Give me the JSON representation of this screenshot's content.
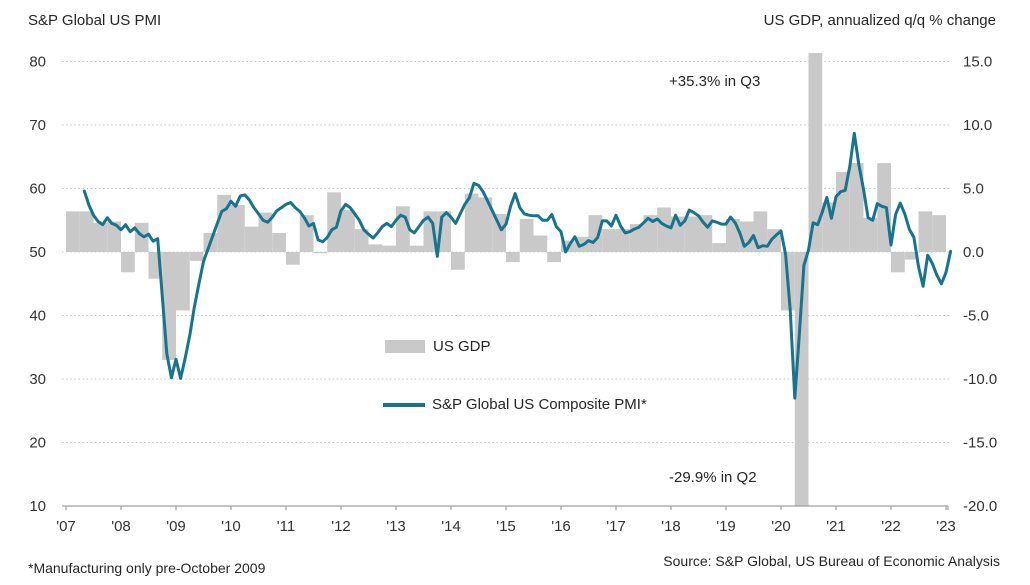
{
  "header": {
    "left_title": "S&P Global US PMI",
    "right_title": "US GDP, annualized q/q % change"
  },
  "annotations": [
    {
      "text": "+35.3% in Q3"
    },
    {
      "text": "-29.9% in Q2"
    }
  ],
  "legend": [
    {
      "label": "US GDP",
      "type": "bar"
    },
    {
      "label": "S&P Global US Composite PMI*",
      "type": "line"
    }
  ],
  "footer": {
    "footnote": "*Manufacturing only pre-October 2009",
    "source": "Source: S&P Global,  US Bureau of Economic Analysis"
  },
  "colors": {
    "bar": "#c9c9c9",
    "line": "#16748f",
    "grid": "#c6c6c6",
    "axis": "#a0a0a0",
    "text": "#333333",
    "background": "#ffffff"
  },
  "chart_data": {
    "type": "line+bar combo",
    "title": "",
    "grid": "horizontal dotted",
    "legend_position": "inside-center",
    "left_axis": {
      "label": "S&P Global US PMI",
      "range": [
        10,
        80
      ],
      "ticks": [
        80,
        70,
        60,
        50,
        40,
        30,
        20,
        10
      ]
    },
    "right_axis": {
      "label": "US GDP, annualized q/q % change",
      "range": [
        -20,
        15
      ],
      "tick_labels": [
        "15.0",
        "10.0",
        "5.0",
        "0.0",
        "-5.0",
        "-10.0",
        "-15.0",
        "-20.0"
      ]
    },
    "x_axis": {
      "tick_labels": [
        "'07",
        "'08",
        "'09",
        "'10",
        "'11",
        "'12",
        "'13",
        "'14",
        "'15",
        "'16",
        "'17",
        "'18",
        "'19",
        "'20",
        "'21",
        "'22",
        "'23"
      ],
      "start_year": 2007
    },
    "series": [
      {
        "name": "US GDP",
        "type": "bar",
        "axis": "right",
        "frequency": "quarterly",
        "start": "2007-Q1",
        "end": "2022-Q4",
        "note": "values above +15 and below -20 are clipped by the plot area (2020 Q3 +35.3, 2020 Q2 -29.9)",
        "values": [
          3.2,
          3.2,
          2.3,
          2.4,
          -1.6,
          2.3,
          -2.1,
          -8.5,
          -4.6,
          -0.7,
          1.5,
          4.5,
          3.7,
          2.0,
          3.1,
          1.5,
          -1.0,
          2.9,
          -0.1,
          4.7,
          3.3,
          1.8,
          0.6,
          0.5,
          3.6,
          0.5,
          3.2,
          3.2,
          -1.4,
          4.6,
          4.3,
          3.0,
          -0.8,
          2.6,
          1.3,
          -0.8,
          0.9,
          1.2,
          2.9,
          1.8,
          1.8,
          2.2,
          2.9,
          3.5,
          2.8,
          2.8,
          2.9,
          0.7,
          2.6,
          2.4,
          3.2,
          1.8,
          -4.6,
          -29.9,
          35.3,
          3.9,
          6.3,
          7.0,
          2.7,
          7.0,
          -1.6,
          -0.6,
          3.2,
          2.9
        ]
      },
      {
        "name": "S&P Global US Composite PMI*",
        "type": "line",
        "axis": "left",
        "frequency": "monthly",
        "start": "2007-05",
        "end": "2023-02",
        "values": [
          59.6,
          57.4,
          55.8,
          54.8,
          54.3,
          55.4,
          54.5,
          54.2,
          53.5,
          54.3,
          53.2,
          53.8,
          52.9,
          52.4,
          52.8,
          51.7,
          52.1,
          43.0,
          34.0,
          30.2,
          33.1,
          30.1,
          33.3,
          36.9,
          41.3,
          45.0,
          48.5,
          50.5,
          52.5,
          54.5,
          56.4,
          56.8,
          58.0,
          57.2,
          58.8,
          59.0,
          58.2,
          57.0,
          56.0,
          55.0,
          54.7,
          55.5,
          56.5,
          57.0,
          57.5,
          57.8,
          57.0,
          56.4,
          55.4,
          54.1,
          54.5,
          51.9,
          51.6,
          52.3,
          53.5,
          53.9,
          56.5,
          57.5,
          57.0,
          56.0,
          55.0,
          53.5,
          52.8,
          52.2,
          53.0,
          54.0,
          54.5,
          54.0,
          55.0,
          55.8,
          55.5,
          53.5,
          53.0,
          54.0,
          55.0,
          55.5,
          54.5,
          49.3,
          55.5,
          56.2,
          55.5,
          54.5,
          56.0,
          57.5,
          58.5,
          60.8,
          60.5,
          59.5,
          58.0,
          56.5,
          55.0,
          53.5,
          54.4,
          57.2,
          59.2,
          57.0,
          56.0,
          55.8,
          55.7,
          55.7,
          55.0,
          55.0,
          55.9,
          54.0,
          53.2,
          50.0,
          51.3,
          52.4,
          50.9,
          51.2,
          51.8,
          51.5,
          52.3,
          54.9,
          54.9,
          54.1,
          55.8,
          54.1,
          53.0,
          53.2,
          53.6,
          53.9,
          54.6,
          55.3,
          54.8,
          55.2,
          54.5,
          54.1,
          53.8,
          55.8,
          54.2,
          54.9,
          56.6,
          56.2,
          55.7,
          54.7,
          53.9,
          54.9,
          54.7,
          54.4,
          54.4,
          55.5,
          54.6,
          53.0,
          50.9,
          51.5,
          52.6,
          50.7,
          51.0,
          50.9,
          52.0,
          52.7,
          53.3,
          49.6,
          40.9,
          27.0,
          37.0,
          47.9,
          50.3,
          54.6,
          54.3,
          56.3,
          58.6,
          55.3,
          58.7,
          59.5,
          59.7,
          63.5,
          68.7,
          63.7,
          59.9,
          55.4,
          55.0,
          57.6,
          57.2,
          57.0,
          51.1,
          55.9,
          57.7,
          56.0,
          53.6,
          52.3,
          47.7,
          44.6,
          49.5,
          48.2,
          46.4,
          45.0,
          46.8,
          50.1
        ]
      }
    ]
  }
}
